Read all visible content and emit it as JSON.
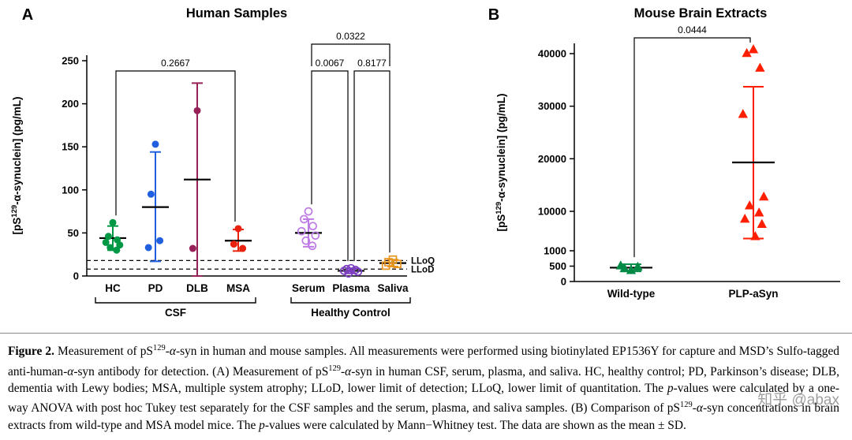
{
  "watermark": "知乎 @abax",
  "caption": {
    "segments": [
      {
        "t": "Figure 2.",
        "b": true
      },
      {
        "t": " Measurement of pS"
      },
      {
        "t": "129",
        "sup": true
      },
      {
        "t": "-"
      },
      {
        "t": "α",
        "i": true
      },
      {
        "t": "-syn in human and mouse samples. All measurements were performed using biotinylated EP1536Y for capture and MSD’s Sulfo-tagged anti-human-"
      },
      {
        "t": "α",
        "i": true
      },
      {
        "t": "-syn antibody for detection. (A) Measurement of pS"
      },
      {
        "t": "129",
        "sup": true
      },
      {
        "t": "-"
      },
      {
        "t": "α",
        "i": true
      },
      {
        "t": "-syn in human CSF, serum, plasma, and saliva. HC, healthy control; PD, Parkinson’s disease; DLB, dementia with Lewy bodies; MSA, multiple system atrophy; LLoD, lower limit of detection; LLoQ, lower limit of quantitation. The "
      },
      {
        "t": "p",
        "i": true
      },
      {
        "t": "-values were calculated by a one-way ANOVA with post hoc Tukey test separately for the CSF samples and the serum, plasma, and saliva samples. (B) Comparison of pS"
      },
      {
        "t": "129",
        "sup": true
      },
      {
        "t": "-"
      },
      {
        "t": "α",
        "i": true
      },
      {
        "t": "-syn concentrations in brain extracts from wild-type and MSA model mice. The "
      },
      {
        "t": "p",
        "i": true
      },
      {
        "t": "-values were calculated by Mann−Whitney test. The data are shown as the mean ± SD."
      }
    ]
  },
  "chart_data": [
    {
      "id": "A",
      "type": "scatter",
      "panel_label": "A",
      "title": "Human Samples",
      "ylabel": "[pS129-α-synuclein] (pg/mL)",
      "ylabel_parts": {
        "pre": "[pS",
        "sup": "129",
        "post": "-α-synuclein] (pg/mL)"
      },
      "ylim": [
        0,
        250
      ],
      "yticks": [
        0,
        50,
        100,
        150,
        200,
        250
      ],
      "groups": [
        {
          "label": "HC",
          "marker": "circle-filled",
          "color": "#009845",
          "values": [
            62,
            46,
            42,
            39,
            36,
            33,
            30
          ],
          "mean": 44,
          "sd_low": 30,
          "sd_high": 58
        },
        {
          "label": "PD",
          "marker": "circle-filled",
          "color": "#2060E0",
          "values": [
            153,
            95,
            41,
            33
          ],
          "mean": 80,
          "sd_low": 17,
          "sd_high": 144
        },
        {
          "label": "DLB",
          "marker": "circle-filled",
          "color": "#962058",
          "values": [
            192,
            32
          ],
          "mean": 112,
          "sd_low": 0,
          "sd_high": 224
        },
        {
          "label": "MSA",
          "marker": "circle-filled",
          "color": "#E8220E",
          "values": [
            55,
            37,
            32
          ],
          "mean": 41,
          "sd_low": 29,
          "sd_high": 54
        },
        {
          "label": "Serum",
          "marker": "circle-open",
          "color": "#BE7BE6",
          "values": [
            75,
            66,
            58,
            52,
            47,
            41,
            35
          ],
          "mean": 50,
          "sd_low": 34,
          "sd_high": 66
        },
        {
          "label": "Plasma",
          "marker": "circle-open",
          "color": "#7D3FC0",
          "values": [
            9,
            8,
            7,
            6,
            5,
            3
          ],
          "mean": 6,
          "sd_low": 3,
          "sd_high": 9
        },
        {
          "label": "Saliva",
          "marker": "square-open",
          "color": "#E8951E",
          "values": [
            19,
            16,
            14,
            12
          ],
          "mean": 15,
          "sd_low": 11,
          "sd_high": 19
        }
      ],
      "group_brackets": [
        {
          "label": "CSF",
          "from": "HC",
          "to": "MSA"
        },
        {
          "label": "Healthy Control",
          "from": "Serum",
          "to": "Saliva"
        }
      ],
      "ref_lines": [
        {
          "label": "LLoQ",
          "value": 18
        },
        {
          "label": "LLoD",
          "value": 8
        }
      ],
      "p_values": [
        {
          "label": "0.2667",
          "from": "HC",
          "to": "MSA",
          "level": 0
        },
        {
          "label": "0.0067",
          "from": "Serum",
          "to": "Plasma",
          "level": 0
        },
        {
          "label": "0.8177",
          "from": "Plasma",
          "to": "Saliva",
          "level": 0
        },
        {
          "label": "0.0322",
          "from": "Serum",
          "to": "Saliva",
          "level": 1
        }
      ]
    },
    {
      "id": "B",
      "type": "scatter",
      "panel_label": "B",
      "title": "Mouse Brain Extracts",
      "ylabel": "[pS129-α-synuclein] (pg/mL)",
      "ylabel_parts": {
        "pre": "[pS",
        "sup": "129",
        "post": "-α-synuclein] (pg/mL)"
      },
      "yticks": [
        0,
        500,
        1000,
        10000,
        20000,
        30000,
        40000
      ],
      "axis_note": "segmented y scale: 0-1000 expanded, 1000-10000 compressed, 10000-40000 linear",
      "groups": [
        {
          "label": "Wild-type",
          "marker": "triangle-filled",
          "color": "#008A45",
          "values": [
            370,
            430,
            480,
            520
          ],
          "mean": 450,
          "sd_low": 330,
          "sd_high": 560
        },
        {
          "label": "PLP-aSyn",
          "marker": "triangle-filled",
          "color": "#FF1E00",
          "values": [
            40800,
            40100,
            37300,
            28500,
            12800,
            11100,
            9700,
            8300,
            7100,
            4300
          ],
          "mean": 19300,
          "sd_low": 3800,
          "sd_high": 33700
        }
      ],
      "p_values": [
        {
          "label": "0.0444",
          "from": "Wild-type",
          "to": "PLP-aSyn",
          "level": 0
        }
      ]
    }
  ]
}
